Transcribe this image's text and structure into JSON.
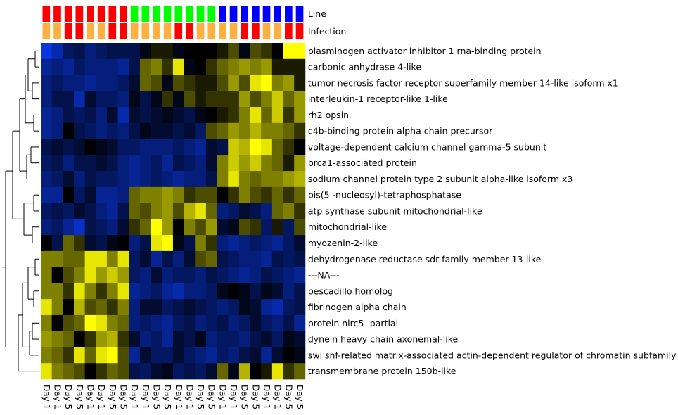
{
  "chart_data": {
    "type": "heatmap",
    "annotation_rows": [
      {
        "name": "Line",
        "values": [
          "R",
          "R",
          "R",
          "R",
          "R",
          "R",
          "R",
          "R",
          "G",
          "G",
          "G",
          "G",
          "G",
          "G",
          "G",
          "G",
          "B",
          "B",
          "B",
          "B",
          "B",
          "B",
          "B",
          "B"
        ],
        "colors": {
          "R": "#ff0000",
          "G": "#00ff00",
          "B": "#0000ff"
        }
      },
      {
        "name": "Infection",
        "values": [
          "O",
          "O",
          "R",
          "R",
          "O",
          "O",
          "R",
          "R",
          "O",
          "O",
          "O",
          "O",
          "R",
          "R",
          "O",
          "O",
          "O",
          "O",
          "R",
          "R",
          "O",
          "O",
          "R",
          "R"
        ],
        "colors": {
          "O": "#ffb040",
          "R": "#ff0000"
        }
      }
    ],
    "columns": [
      "Day 1",
      "Day 1",
      "Day 5",
      "Day 5",
      "Day 1",
      "Day 1",
      "Day 5",
      "Day 5",
      "Day 1",
      "Day 1",
      "Day 5",
      "Day 5",
      "Day 1",
      "Day 1",
      "Day 5",
      "Day 5",
      "Day 1",
      "Day 1",
      "Day 5",
      "Day 5",
      "Day 1",
      "Day 1",
      "Day 5",
      "Day 5"
    ],
    "rows": [
      "plasminogen activator inhibitor 1 rna-binding protein",
      "carbonic anhydrase 4-like",
      "tumor necrosis factor receptor superfamily member 14-like isoform x1",
      "interleukin-1 receptor-like 1-like",
      "rh2 opsin",
      "c4b-binding protein alpha chain precursor",
      "voltage-dependent calcium channel gamma-5 subunit",
      "brca1-associated protein",
      "sodium channel protein type 2 subunit alpha-like isoform x3",
      "bis(5 -nucleosyl)-tetraphosphatase",
      "atp synthase subunit mitochondrial-like",
      "mitochondrial-like",
      "myozenin-2-like",
      "dehydrogenase reductase sdr family member 13-like",
      "---NA---",
      "pescadillo homolog",
      "fibrinogen alpha chain",
      "protein nlrc5- partial",
      "dynein heavy chain axonemal-like",
      "swi snf-related matrix-associated actin-dependent regulator of chromatin subfamily a",
      "transmembrane protein 150b-like"
    ],
    "values": [
      [
        -0.9,
        -0.7,
        -0.4,
        -0.3,
        -0.5,
        -0.4,
        -0.3,
        -0.3,
        -0.3,
        -0.1,
        0.1,
        0.1,
        -0.1,
        0.0,
        0.0,
        0.0,
        0.1,
        0.3,
        -0.1,
        0.3,
        0.2,
        0.0,
        1.0,
        1.0
      ],
      [
        -0.6,
        -0.5,
        -0.6,
        -0.4,
        -0.5,
        -0.5,
        -0.5,
        -0.6,
        -0.3,
        0.4,
        0.5,
        0.2,
        0.9,
        -0.1,
        0.0,
        0.2,
        0.4,
        0.5,
        0.6,
        0.5,
        0.6,
        0.1,
        0.1,
        0.1
      ],
      [
        -0.5,
        -0.4,
        -0.5,
        -0.5,
        -0.6,
        -0.5,
        -0.5,
        -0.4,
        -0.2,
        0.4,
        0.3,
        -0.1,
        0.3,
        0.2,
        0.1,
        0.1,
        0.3,
        0.6,
        0.3,
        0.9,
        1.0,
        0.5,
        0.6,
        0.1
      ],
      [
        -0.5,
        -0.3,
        -0.3,
        -0.7,
        -0.2,
        -0.4,
        -0.4,
        -0.5,
        -0.1,
        -0.3,
        -0.1,
        0.2,
        -0.1,
        0.3,
        0.1,
        0.2,
        0.2,
        0.2,
        0.6,
        0.3,
        0.5,
        0.8,
        0.4,
        0.6
      ],
      [
        -0.6,
        -0.5,
        -0.3,
        -0.4,
        -0.3,
        -0.5,
        -0.2,
        -0.7,
        -0.2,
        -0.3,
        -0.2,
        -0.1,
        -0.2,
        -0.3,
        -0.1,
        0.0,
        0.1,
        0.2,
        0.5,
        0.9,
        0.4,
        0.8,
        0.2,
        0.6
      ],
      [
        -0.6,
        -0.5,
        0.0,
        -0.3,
        -0.4,
        -0.5,
        -0.4,
        -0.5,
        -0.3,
        -0.1,
        -0.2,
        -0.2,
        -0.3,
        -0.2,
        -0.4,
        0.3,
        0.4,
        0.6,
        0.5,
        0.7,
        0.5,
        0.5,
        0.4,
        0.2
      ],
      [
        -0.3,
        -0.2,
        -0.3,
        -0.2,
        0.0,
        -0.1,
        -0.2,
        -0.4,
        -0.4,
        -0.5,
        -0.5,
        -0.5,
        -0.4,
        -0.5,
        -0.6,
        -0.2,
        -0.3,
        0.8,
        0.7,
        1.0,
        0.9,
        0.4,
        0.2,
        0.0
      ],
      [
        -0.4,
        -0.3,
        -0.5,
        -0.3,
        -0.3,
        -0.2,
        -0.3,
        -0.5,
        -0.6,
        -0.5,
        -0.4,
        -0.6,
        -0.3,
        -0.4,
        -0.5,
        -0.2,
        0.5,
        0.8,
        0.6,
        0.8,
        0.5,
        0.4,
        0.1,
        0.6
      ],
      [
        -0.5,
        -0.4,
        -0.2,
        -0.5,
        -0.3,
        -0.4,
        -0.4,
        -0.5,
        -0.6,
        -0.5,
        -0.4,
        -0.5,
        -0.6,
        -0.5,
        -0.5,
        -0.3,
        0.5,
        0.9,
        0.5,
        0.4,
        0.5,
        0.5,
        0.6,
        0.7
      ],
      [
        -0.6,
        -0.6,
        0.0,
        -0.4,
        -0.2,
        -0.6,
        -0.6,
        -0.5,
        0.4,
        0.5,
        0.5,
        0.6,
        0.5,
        0.2,
        0.3,
        0.3,
        0.0,
        0.2,
        0.5,
        0.3,
        0.2,
        0.4,
        0.2,
        0.4
      ],
      [
        -0.4,
        -0.3,
        -0.4,
        -0.2,
        -0.3,
        -0.5,
        -0.6,
        -0.3,
        0.4,
        0.3,
        0.5,
        0.6,
        0.3,
        0.7,
        0.9,
        0.4,
        -0.5,
        -0.4,
        -0.2,
        -0.3,
        -0.5,
        0.4,
        0.5,
        0.2
      ],
      [
        -0.5,
        -0.4,
        -0.6,
        -0.8,
        -0.3,
        -0.4,
        -0.5,
        -0.2,
        0.2,
        0.4,
        1.0,
        0.6,
        0.0,
        0.5,
        0.3,
        0.6,
        -0.2,
        -0.1,
        0.3,
        0.2,
        -0.4,
        0.1,
        -0.4,
        0.3
      ],
      [
        0.0,
        -0.3,
        0.4,
        0.2,
        -0.2,
        -0.3,
        -0.1,
        0.0,
        -0.5,
        -0.3,
        0.9,
        1.0,
        -0.1,
        -0.3,
        0.5,
        0.2,
        -0.5,
        -0.6,
        -0.5,
        -0.4,
        -0.5,
        -0.6,
        -0.4,
        -0.2
      ],
      [
        0.5,
        0.5,
        0.4,
        0.4,
        0.9,
        0.9,
        0.5,
        0.9,
        -0.4,
        -0.2,
        -0.6,
        -0.3,
        -0.5,
        -0.2,
        0.3,
        0.4,
        -0.3,
        -0.4,
        -0.5,
        -0.5,
        -0.6,
        -0.3,
        -0.4,
        -0.3
      ],
      [
        0.5,
        0.0,
        0.3,
        0.5,
        0.9,
        0.6,
        0.8,
        0.6,
        -0.4,
        -0.5,
        -0.2,
        -0.5,
        -0.4,
        -0.4,
        -0.5,
        -0.3,
        -0.4,
        -0.5,
        -0.6,
        -0.5,
        -0.3,
        -0.4,
        -0.5,
        -0.6
      ],
      [
        0.5,
        0.5,
        0.2,
        0.9,
        0.5,
        0.2,
        0.5,
        0.9,
        -0.6,
        -0.5,
        -0.4,
        -0.6,
        -0.7,
        -0.5,
        -0.5,
        -0.4,
        -0.1,
        0.0,
        -0.1,
        -0.3,
        -0.1,
        -0.2,
        -0.5,
        -0.3
      ],
      [
        0.9,
        0.5,
        0.0,
        0.7,
        0.3,
        0.4,
        0.2,
        0.5,
        -0.5,
        -0.2,
        -0.2,
        -0.4,
        -0.3,
        -0.2,
        -0.3,
        -0.4,
        -0.5,
        -0.4,
        -0.1,
        -0.2,
        -0.6,
        -0.7,
        -0.4,
        -0.3
      ],
      [
        0.5,
        0.0,
        0.3,
        0.4,
        1.0,
        0.9,
        0.5,
        0.4,
        -0.5,
        -0.4,
        -0.5,
        -0.6,
        -0.4,
        -0.3,
        -0.5,
        -0.4,
        -0.3,
        -0.5,
        -0.4,
        -0.2,
        -0.4,
        -0.5,
        -0.3,
        -0.6
      ],
      [
        0.6,
        0.5,
        0.4,
        0.0,
        0.2,
        0.6,
        0.7,
        0.2,
        -0.2,
        -0.5,
        -0.4,
        -0.6,
        -0.2,
        -0.3,
        -0.1,
        -0.5,
        -0.4,
        -0.4,
        -0.5,
        -0.3,
        -0.2,
        -0.4,
        -0.1,
        -0.2
      ],
      [
        0.5,
        0.4,
        0.2,
        0.9,
        0.4,
        0.9,
        1.0,
        0.3,
        -0.6,
        -0.2,
        -0.4,
        -0.4,
        -0.2,
        -0.4,
        -0.5,
        -0.6,
        -0.4,
        -0.5,
        -0.3,
        -0.2,
        -0.6,
        -0.2,
        0.0,
        -0.1
      ],
      [
        0.9,
        0.5,
        0.4,
        0.3,
        0.0,
        0.2,
        0.4,
        0.3,
        -0.3,
        -0.4,
        -0.2,
        -0.1,
        -0.4,
        -0.3,
        -0.4,
        -0.2,
        0.4,
        -0.1,
        0.7,
        0.0,
        0.1,
        0.9,
        0.2,
        0.4
      ]
    ],
    "colors": {
      "low": "#0a3cf5",
      "mid": "#000000",
      "high": "#ffff00"
    },
    "legend": []
  }
}
